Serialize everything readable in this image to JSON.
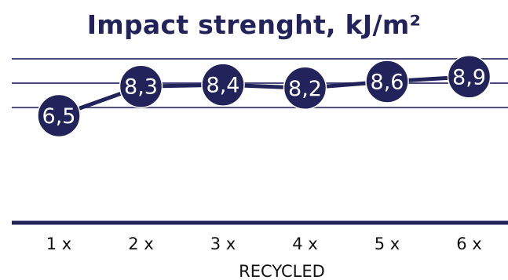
{
  "chart_data": {
    "type": "line",
    "title": "Impact strenght, kJ/m²",
    "xlabel": "RECYCLED",
    "ylabel": "",
    "categories": [
      "1 x",
      "2 x",
      "3 x",
      "4 x",
      "5 x",
      "6 x"
    ],
    "series": [
      {
        "values": [
          6.5,
          8.3,
          8.4,
          8.2,
          8.6,
          8.9
        ],
        "labels": [
          "6,5",
          "8,3",
          "8,4",
          "8,2",
          "8,6",
          "8,9"
        ]
      }
    ],
    "gridlines": [
      7,
      8.5,
      10
    ],
    "ylim": [
      0,
      10.5
    ],
    "grid": true,
    "colors": {
      "line": "#23235b",
      "marker": "#23235b",
      "grid": "#4b4b7a",
      "baseline": "#23235b"
    }
  }
}
